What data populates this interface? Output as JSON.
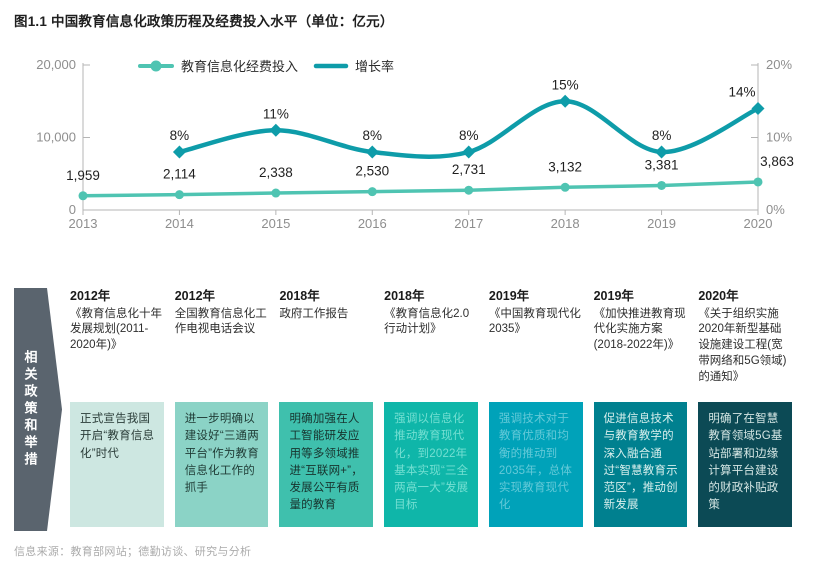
{
  "page": {
    "title": "图1.1 中国教育信息化政策历程及经费投入水平（单位：亿元）",
    "source": "信息来源：教育部网站；德勤访谈、研究与分析"
  },
  "chart_data": {
    "type": "line",
    "title": "图1.1 中国教育信息化政策历程及经费投入水平（单位：亿元）",
    "categories": [
      "2013",
      "2014",
      "2015",
      "2016",
      "2017",
      "2018",
      "2019",
      "2020"
    ],
    "series": [
      {
        "name": "教育信息化经费投入",
        "axis": "left",
        "color": "#4FC4B2",
        "marker": "circle",
        "values": [
          1959,
          2114,
          2338,
          2530,
          2731,
          3132,
          3381,
          3863
        ],
        "labels": [
          "1,959",
          "2,114",
          "2,338",
          "2,530",
          "2,731",
          "3,132",
          "3,381",
          "3,863"
        ]
      },
      {
        "name": "增长率",
        "axis": "right",
        "color": "#0E9CA9",
        "marker": "diamond",
        "values": [
          null,
          8,
          11,
          8,
          8,
          15,
          8,
          14
        ],
        "labels": [
          null,
          "8%",
          "11%",
          "8%",
          "8%",
          "15%",
          "8%",
          "14%"
        ]
      }
    ],
    "left_axis": {
      "max": 20000,
      "ticks": [
        {
          "label": "20,000",
          "value": 20000
        },
        {
          "label": "10,000",
          "value": 10000
        },
        {
          "label": "0",
          "value": 0
        }
      ]
    },
    "right_axis": {
      "max": 20,
      "ticks": [
        {
          "label": "20%",
          "value": 20
        },
        {
          "label": "10%",
          "value": 10
        },
        {
          "label": "0%",
          "value": 0
        }
      ]
    },
    "legend_position": "top",
    "grid": false,
    "axis_color": "#b5b5b5",
    "tick_label_color": "#8e8e8e",
    "data_label_color": "#1f1f1f",
    "legend_text_color": "#2b2b2b"
  },
  "timeline": {
    "arrow_label": "相关政策和举措",
    "arrow_color": "#5A646E",
    "columns": [
      {
        "year": "2012年",
        "subtitle": "《教育信息化十年发展规划(2011-2020年)》",
        "box_text": "正式宣告我国开启“教育信息化”时代",
        "box_bg": "#CDE7E1",
        "box_fg": "#2A3C38"
      },
      {
        "year": "2012年",
        "subtitle": "全国教育信息化工作电视电话会议",
        "box_text": "进一步明确以建设好“三通两平台”作为教育信息化工作的抓手",
        "box_bg": "#8BD3C6",
        "box_fg": "#1F3B35"
      },
      {
        "year": "2018年",
        "subtitle": "政府工作报告",
        "box_text": "明确加强在人工智能研发应用等多领域推进“互联网+”，发展公平有质量的教育",
        "box_bg": "#3FC0AD",
        "box_fg": "#17332E"
      },
      {
        "year": "2018年",
        "subtitle": "《教育信息化2.0行动计划》",
        "box_text": "强调以信息化推动教育现代化，到2022年基本实现“三全两高一大”发展目标",
        "box_bg": "#0FB6A9",
        "box_fg": "#74DFD2"
      },
      {
        "year": "2019年",
        "subtitle": "《中国教育现代化2035》",
        "box_text": "强调技术对于教育优质和均衡的推动到2035年，总体实现教育现代化",
        "box_bg": "#00A2B9",
        "box_fg": "#63C9D8"
      },
      {
        "year": "2019年",
        "subtitle": "《加快推进教育现代化实施方案 (2018-2022年)》",
        "box_text": "促进信息技术与教育教学的深入融合通过“智慧教育示范区”，推动创新发展",
        "box_bg": "#00808F",
        "box_fg": "#D7EFED"
      },
      {
        "year": "2020年",
        "subtitle": "《关于组织实施2020年新型基础设施建设工程(宽带网络和5G领域)的通知》",
        "box_text": "明确了在智慧教育领域5G基站部署和边缘计算平台建设的财政补贴政策",
        "box_bg": "#0C4A55",
        "box_fg": "#D5E6E4"
      }
    ]
  }
}
